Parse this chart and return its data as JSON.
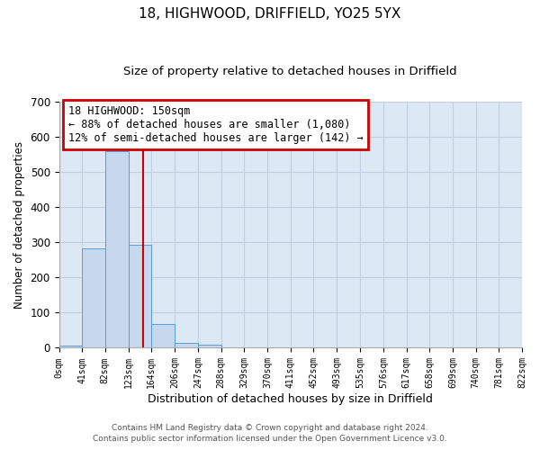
{
  "title": "18, HIGHWOOD, DRIFFIELD, YO25 5YX",
  "subtitle": "Size of property relative to detached houses in Driffield",
  "xlabel": "Distribution of detached houses by size in Driffield",
  "ylabel": "Number of detached properties",
  "bar_edges": [
    0,
    41,
    82,
    123,
    164,
    206,
    247,
    288,
    329,
    370,
    411,
    452,
    493,
    535,
    576,
    617,
    658,
    699,
    740,
    781,
    822
  ],
  "bar_heights": [
    7,
    282,
    560,
    293,
    68,
    15,
    8,
    0,
    0,
    0,
    0,
    0,
    0,
    0,
    0,
    0,
    0,
    0,
    0,
    0
  ],
  "bar_color": "#c5d8ed",
  "bar_edge_color": "#5b9bd5",
  "ylim": [
    0,
    700
  ],
  "yticks": [
    0,
    100,
    200,
    300,
    400,
    500,
    600,
    700
  ],
  "tick_labels": [
    "0sqm",
    "41sqm",
    "82sqm",
    "123sqm",
    "164sqm",
    "206sqm",
    "247sqm",
    "288sqm",
    "329sqm",
    "370sqm",
    "411sqm",
    "452sqm",
    "493sqm",
    "535sqm",
    "576sqm",
    "617sqm",
    "658sqm",
    "699sqm",
    "740sqm",
    "781sqm",
    "822sqm"
  ],
  "vline_x": 150,
  "vline_color": "#cc0000",
  "annotation_line1": "18 HIGHWOOD: 150sqm",
  "annotation_line2": "← 88% of detached houses are smaller (1,080)",
  "annotation_line3": "12% of semi-detached houses are larger (142) →",
  "annotation_box_color": "#cc0000",
  "footer_line1": "Contains HM Land Registry data © Crown copyright and database right 2024.",
  "footer_line2": "Contains public sector information licensed under the Open Government Licence v3.0.",
  "background_color": "#ffffff",
  "plot_bg_color": "#dce9f5",
  "grid_color": "#c0d0e0"
}
